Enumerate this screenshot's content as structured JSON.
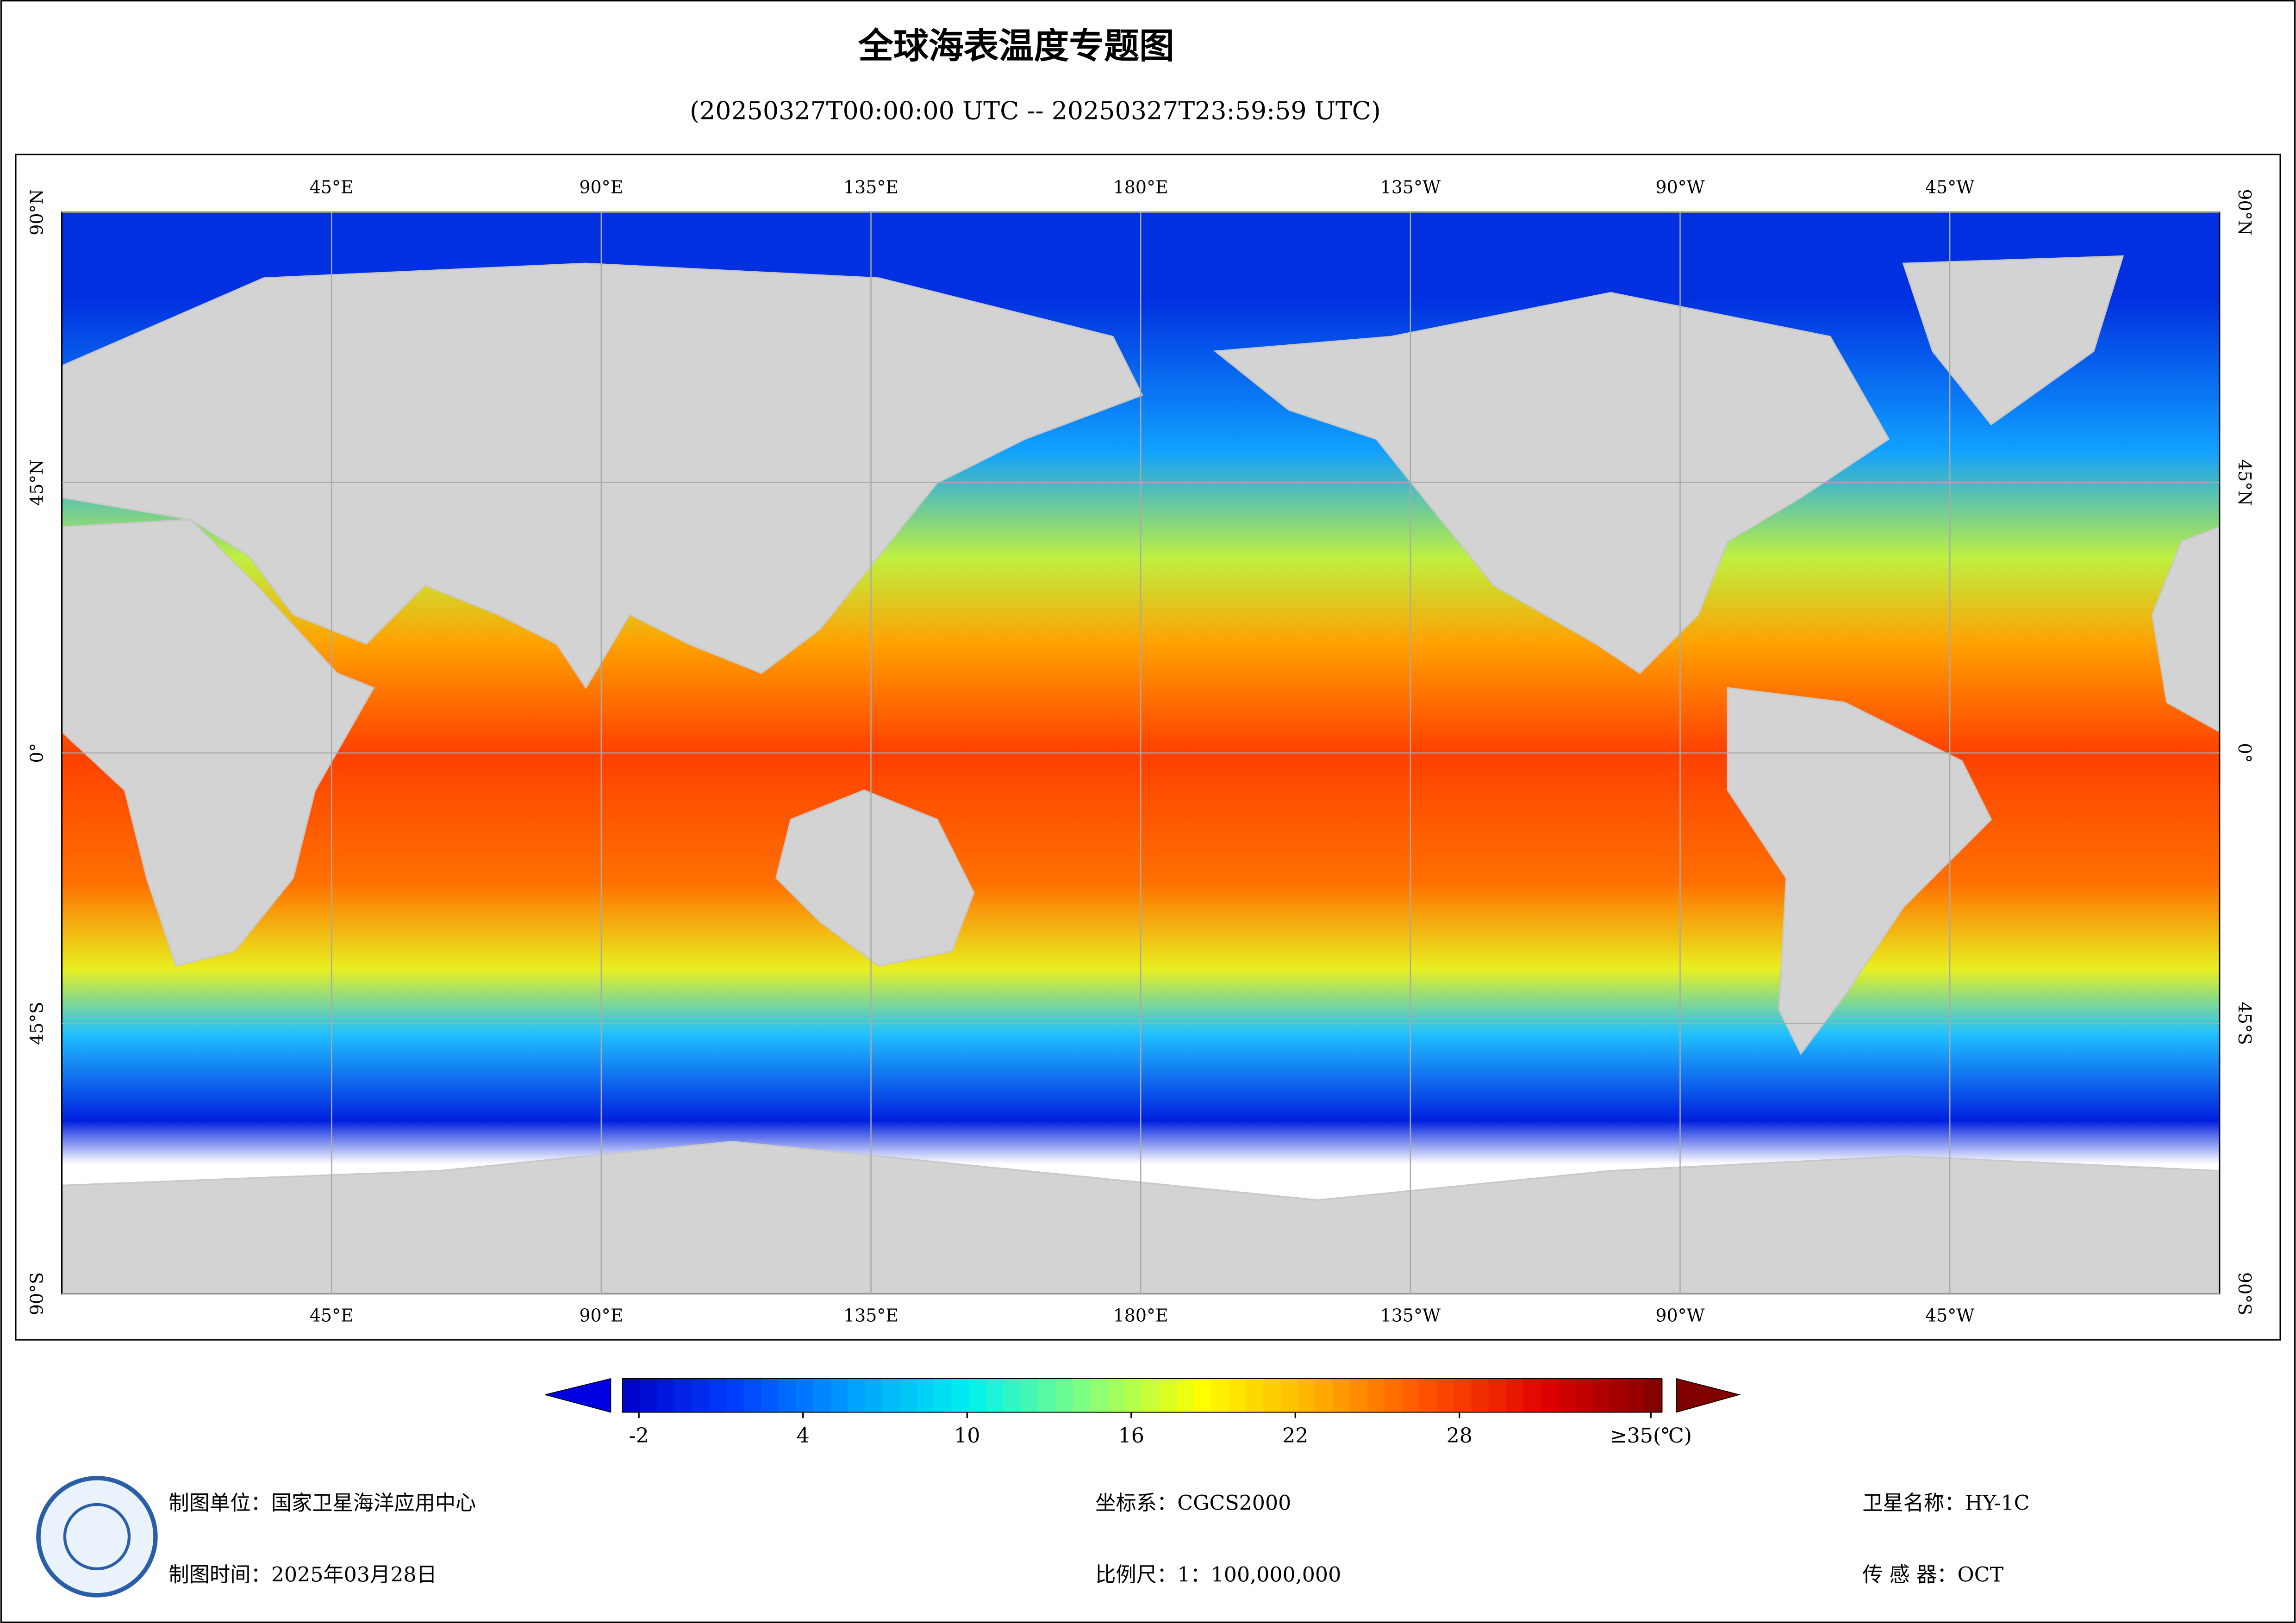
{
  "header": {
    "title": "全球海表温度专题图",
    "subtitle": "(20250327T00:00:00 UTC -- 20250327T23:59:59 UTC)"
  },
  "map": {
    "lon_range": [
      0,
      360
    ],
    "lat_range": [
      -90,
      90
    ],
    "lon_ticks": [
      {
        "value": 45,
        "label": "45°E"
      },
      {
        "value": 90,
        "label": "90°E"
      },
      {
        "value": 135,
        "label": "135°E"
      },
      {
        "value": 180,
        "label": "180°E"
      },
      {
        "value": 225,
        "label": "135°W"
      },
      {
        "value": 270,
        "label": "90°W"
      },
      {
        "value": 315,
        "label": "45°W"
      }
    ],
    "lat_ticks": [
      {
        "value": 90,
        "label": "90°N"
      },
      {
        "value": 45,
        "label": "45°N"
      },
      {
        "value": 0,
        "label": "0°"
      },
      {
        "value": -45,
        "label": "45°S"
      },
      {
        "value": -90,
        "label": "90°S"
      }
    ],
    "grid": true
  },
  "colorbar": {
    "range": [
      -2.6,
      35.4
    ],
    "colors": [
      "#0000c8",
      "#0040ff",
      "#00a0ff",
      "#00f0f0",
      "#80ff80",
      "#ffff00",
      "#ffb000",
      "#ff5000",
      "#e00000",
      "#800000"
    ],
    "ticks": [
      -2,
      4,
      10,
      16,
      22,
      28,
      {
        "value": 35,
        "label": "≥35(℃)"
      }
    ]
  },
  "footer": {
    "unit": "制图单位：国家卫星海洋应用中心",
    "date": "制图时间：2025年03月28日",
    "crs": "坐标系：CGCS2000",
    "scale": "比例尺：1：100,000,000",
    "satellite": "卫星名称：HY-1C",
    "sensor": "传 感 器：OCT"
  }
}
